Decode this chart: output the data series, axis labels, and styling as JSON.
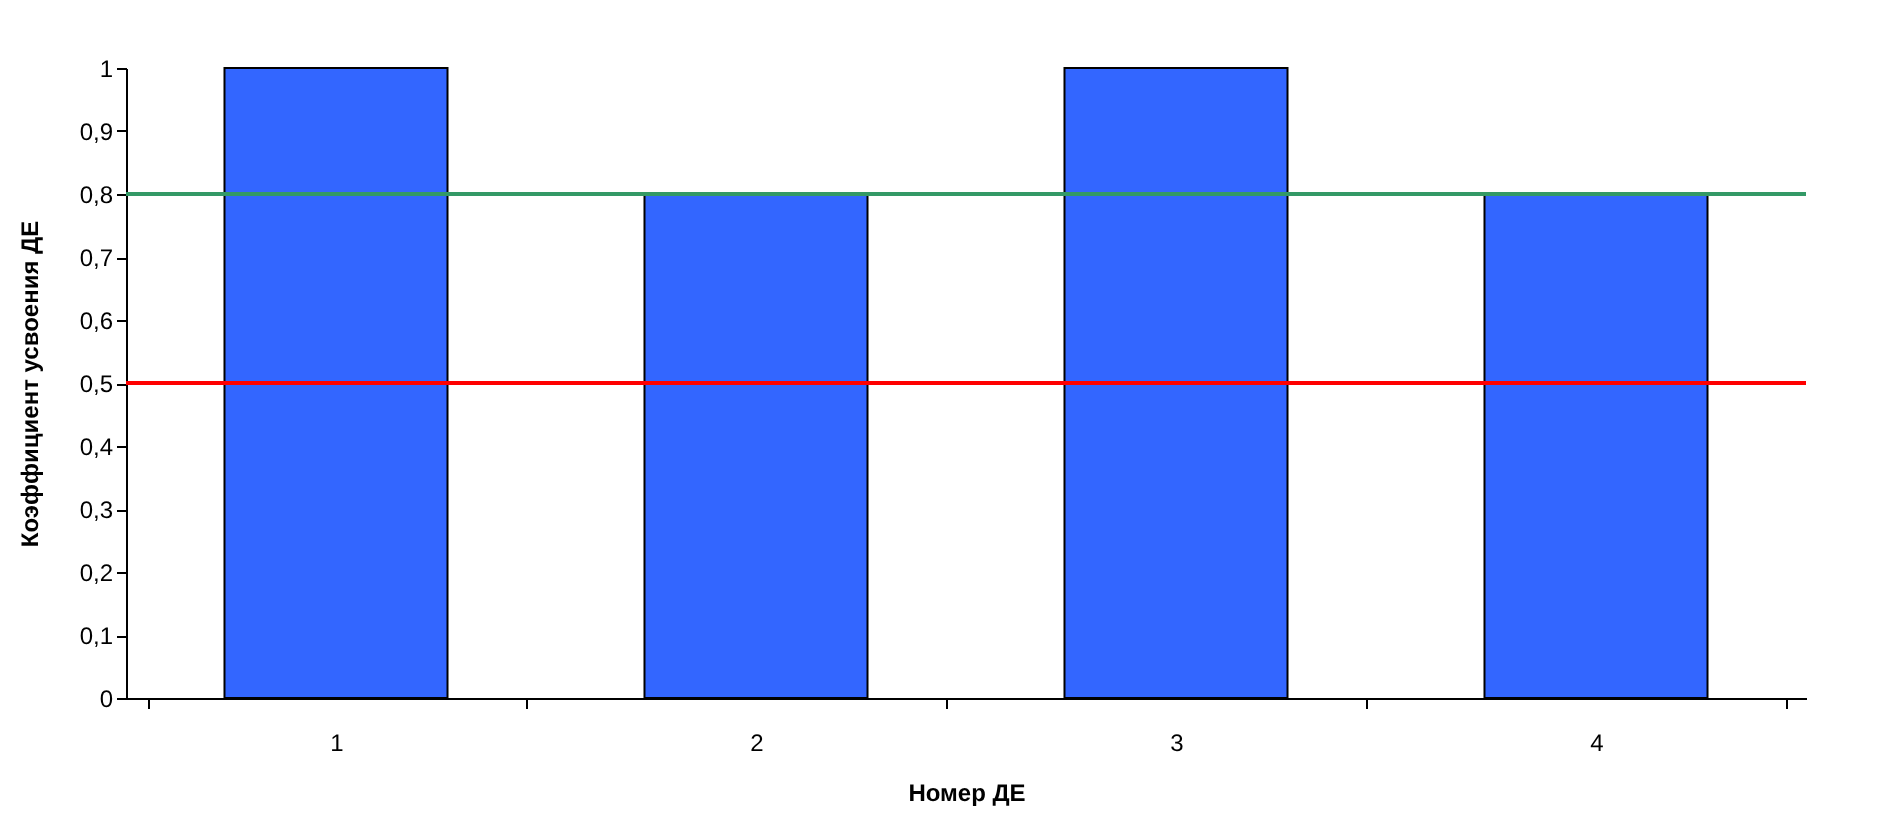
{
  "chart_data": {
    "type": "bar",
    "xlabel": "Номер ДЕ",
    "ylabel": "Коэффициент усвоения ДЕ",
    "categories": [
      "1",
      "2",
      "3",
      "4"
    ],
    "values": [
      1,
      0.8,
      1,
      0.8
    ],
    "color": "#3366ff",
    "ylim": [
      0,
      1
    ],
    "yticks": [
      {
        "value": 0,
        "label": "0"
      },
      {
        "value": 0.1,
        "label": "0,1"
      },
      {
        "value": 0.2,
        "label": "0,2"
      },
      {
        "value": 0.3,
        "label": "0,3"
      },
      {
        "value": 0.4,
        "label": "0,4"
      },
      {
        "value": 0.5,
        "label": "0,5"
      },
      {
        "value": 0.6,
        "label": "0,6"
      },
      {
        "value": 0.7,
        "label": "0,7"
      },
      {
        "value": 0.8,
        "label": "0,8"
      },
      {
        "value": 0.9,
        "label": "0,9"
      },
      {
        "value": 1,
        "label": "1"
      }
    ],
    "ref_lines": [
      {
        "axis": "y",
        "value": 0.8,
        "color": "#339966"
      },
      {
        "axis": "y",
        "value": 0.5,
        "color": "#ff0000"
      }
    ],
    "grid": false
  }
}
